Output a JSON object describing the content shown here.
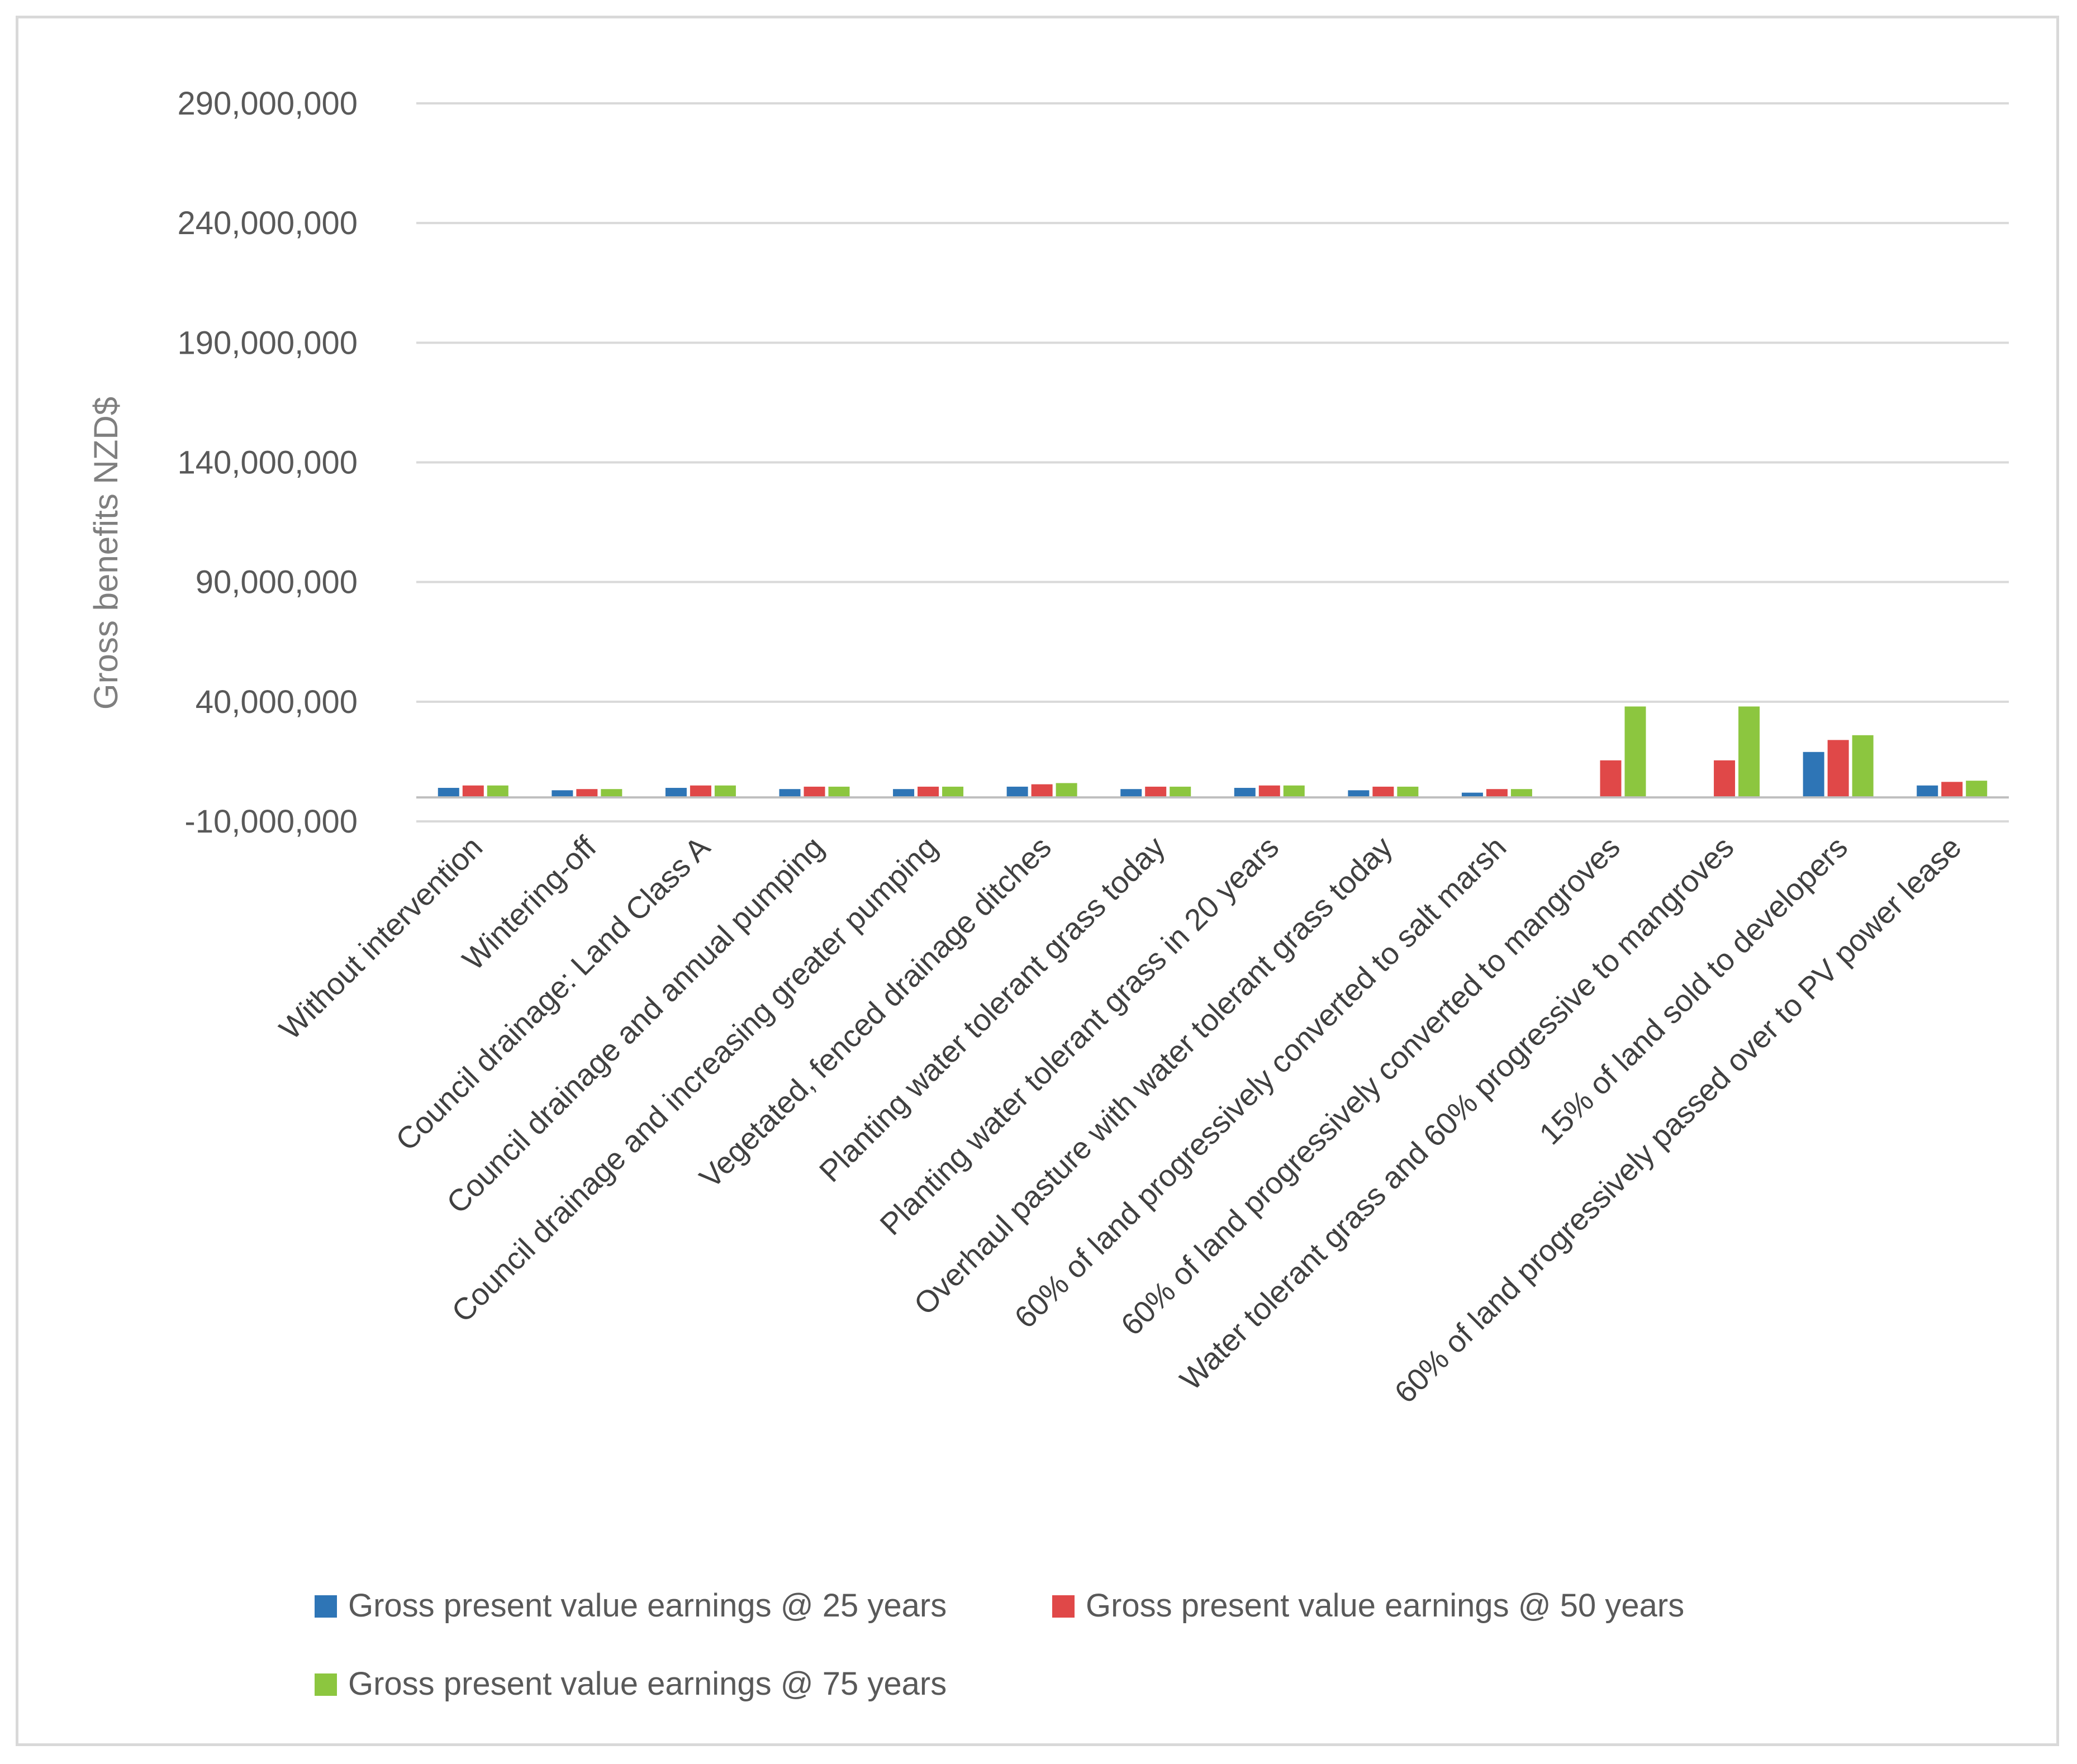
{
  "chart_data": {
    "type": "bar",
    "title": "",
    "xlabel": "",
    "ylabel": "Gross benefits NZD$",
    "ylim": [
      -10000000,
      290000000
    ],
    "yticks": [
      {
        "value": 290000000,
        "label": "290,000,000"
      },
      {
        "value": 240000000,
        "label": "240,000,000"
      },
      {
        "value": 190000000,
        "label": "190,000,000"
      },
      {
        "value": 140000000,
        "label": "140,000,000"
      },
      {
        "value": 90000000,
        "label": "90,000,000"
      },
      {
        "value": 40000000,
        "label": "40,000,000"
      },
      {
        "value": -10000000,
        "label": "-10,000,000"
      }
    ],
    "grid": true,
    "legend_position": "bottom",
    "categories": [
      "Without intervention",
      "Wintering-off",
      "Council drainage: Land Class A",
      "Council drainage and annual pumping",
      "Council drainage and increasing greater pumping",
      "Vegetated, fenced  drainage ditches",
      "Planting water tolerant grass today",
      "Planting water tolerant grass in 20 years",
      "Overhaul pasture with water tolerant grass today",
      "60% of land progressively converted to salt marsh",
      "60% of land progressively converted to mangroves",
      "Water tolerant grass and 60% progressive to mangroves",
      "15% of land sold to developers",
      "60% of land progressively passed over to PV power lease"
    ],
    "series": [
      {
        "name": "Gross present value earnings @ 25 years",
        "color": "#2e75b6",
        "values": [
          4000000,
          3000000,
          4000000,
          3500000,
          3500000,
          4500000,
          3500000,
          4000000,
          3000000,
          2000000,
          0,
          0,
          19000000,
          5000000
        ]
      },
      {
        "name": "Gross present value earnings @ 50 years",
        "color": "#e04848",
        "values": [
          5000000,
          3500000,
          5000000,
          4500000,
          4500000,
          5500000,
          4500000,
          5000000,
          4500000,
          3500000,
          15500000,
          15500000,
          24000000,
          6500000
        ]
      },
      {
        "name": "Gross present value earnings @ 75 years",
        "color": "#8cc63f",
        "values": [
          5000000,
          3500000,
          5000000,
          4500000,
          4500000,
          6000000,
          4500000,
          5000000,
          4500000,
          3500000,
          38000000,
          38000000,
          26000000,
          7000000
        ]
      }
    ]
  }
}
